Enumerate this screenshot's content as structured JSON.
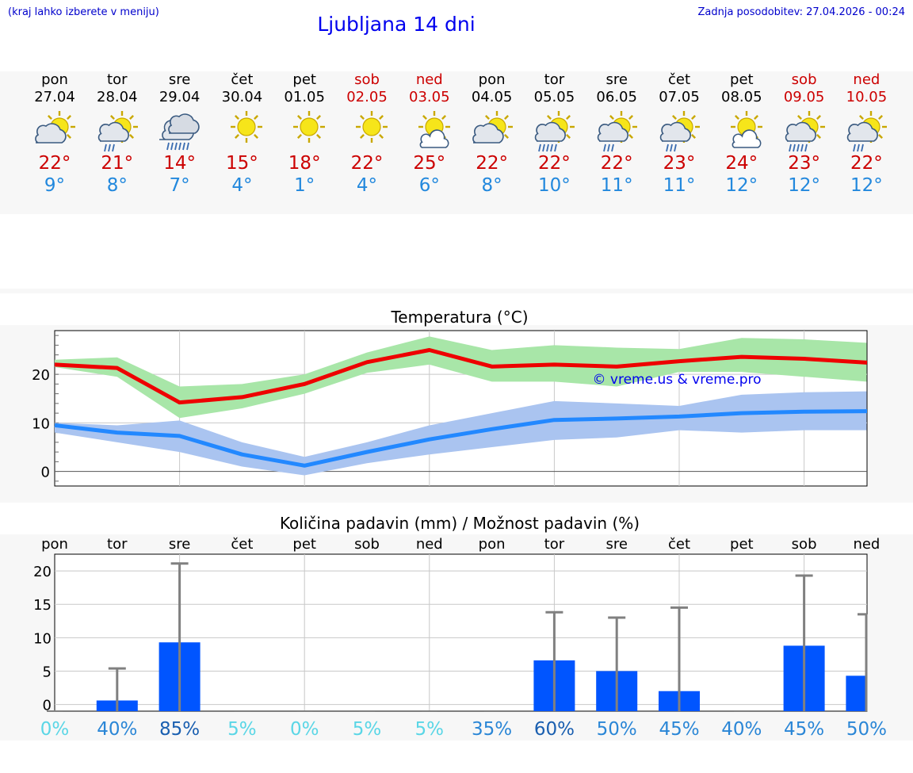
{
  "header": {
    "hint": "(kraj lahko izberete v meniju)",
    "title": "Ljubljana 14 dni",
    "updated": "Zadnja posodobitev: 27.04.2026 - 00:24"
  },
  "days": [
    {
      "name": "pon",
      "date": "27.04",
      "weekend": false,
      "icon": "partly-cloudy-icon",
      "tmax": "22°",
      "tmin": "9°"
    },
    {
      "name": "tor",
      "date": "28.04",
      "weekend": false,
      "icon": "sun-rain-icon",
      "tmax": "21°",
      "tmin": "8°"
    },
    {
      "name": "sre",
      "date": "29.04",
      "weekend": false,
      "icon": "cloud-rain-icon",
      "tmax": "14°",
      "tmin": "7°"
    },
    {
      "name": "čet",
      "date": "30.04",
      "weekend": false,
      "icon": "sun-icon",
      "tmax": "15°",
      "tmin": "4°"
    },
    {
      "name": "pet",
      "date": "01.05",
      "weekend": false,
      "icon": "sun-icon",
      "tmax": "18°",
      "tmin": "1°"
    },
    {
      "name": "sob",
      "date": "02.05",
      "weekend": true,
      "icon": "sun-icon",
      "tmax": "22°",
      "tmin": "4°"
    },
    {
      "name": "ned",
      "date": "03.05",
      "weekend": true,
      "icon": "sun-small-cloud-icon",
      "tmax": "25°",
      "tmin": "6°"
    },
    {
      "name": "pon",
      "date": "04.05",
      "weekend": false,
      "icon": "partly-cloudy-icon",
      "tmax": "22°",
      "tmin": "8°"
    },
    {
      "name": "tor",
      "date": "05.05",
      "weekend": false,
      "icon": "sun-heavy-rain-icon",
      "tmax": "22°",
      "tmin": "10°"
    },
    {
      "name": "sre",
      "date": "06.05",
      "weekend": false,
      "icon": "sun-rain-icon",
      "tmax": "22°",
      "tmin": "11°"
    },
    {
      "name": "čet",
      "date": "07.05",
      "weekend": false,
      "icon": "sun-rain-icon",
      "tmax": "23°",
      "tmin": "11°"
    },
    {
      "name": "pet",
      "date": "08.05",
      "weekend": false,
      "icon": "sun-small-cloud-icon",
      "tmax": "24°",
      "tmin": "12°"
    },
    {
      "name": "sob",
      "date": "09.05",
      "weekend": true,
      "icon": "sun-heavy-rain-icon",
      "tmax": "23°",
      "tmin": "12°"
    },
    {
      "name": "ned",
      "date": "10.05",
      "weekend": true,
      "icon": "sun-rain-icon",
      "tmax": "22°",
      "tmin": "12°"
    }
  ],
  "colors": {
    "tmax": "#cc0000",
    "tmin": "#2288dd",
    "max_line": "#ee0000",
    "max_band": "#a8e6a8",
    "min_line": "#2288ff",
    "min_band": "#aac4f0",
    "bar": "#0055ff",
    "whisker": "#808080"
  },
  "chart_data": [
    {
      "type": "line",
      "title": "Temperatura (°C)",
      "watermark": "© vreme.us & vreme.pro",
      "x": [
        0,
        1,
        2,
        3,
        4,
        5,
        6,
        7,
        8,
        9,
        10,
        11,
        12,
        13
      ],
      "ylim": [
        -3,
        29
      ],
      "yticks": [
        0,
        10,
        20
      ],
      "series": [
        {
          "name": "max",
          "values": [
            22,
            21.3,
            14.2,
            15.3,
            18,
            22.5,
            25,
            21.6,
            22,
            21.6,
            22.7,
            23.6,
            23.2,
            22.4
          ],
          "band_low": [
            21.5,
            19.5,
            11,
            13,
            16,
            20.3,
            22,
            18.5,
            18.5,
            17.5,
            20.5,
            20.5,
            19.5,
            18.5
          ],
          "band_high": [
            23,
            23.5,
            17.5,
            18,
            20,
            24.5,
            27.8,
            25,
            26,
            25.5,
            25.2,
            27.5,
            27.2,
            26.5
          ]
        },
        {
          "name": "min",
          "values": [
            9.5,
            8,
            7.3,
            3.5,
            1.2,
            4,
            6.6,
            8.7,
            10.6,
            10.9,
            11.3,
            12,
            12.3,
            12.4
          ],
          "band_low": [
            8,
            6,
            4,
            1,
            -0.8,
            1.7,
            3.5,
            5,
            6.5,
            7,
            8.5,
            8,
            8.5,
            8.5
          ],
          "band_high": [
            10,
            9.5,
            10.5,
            6,
            3,
            6,
            9.5,
            12,
            14.5,
            14,
            13.5,
            15.8,
            16.3,
            16.5
          ]
        }
      ]
    },
    {
      "type": "bar",
      "title": "Količina padavin (mm) / Možnost padavin (%)",
      "categories": [
        "pon",
        "tor",
        "sre",
        "čet",
        "pet",
        "sob",
        "ned",
        "pon",
        "tor",
        "sre",
        "čet",
        "pet",
        "sob",
        "ned"
      ],
      "values": [
        0,
        0.6,
        9.3,
        0,
        0,
        0,
        0,
        0,
        6.6,
        5,
        2,
        0,
        8.8,
        4.3
      ],
      "whisker_max": [
        0,
        5.4,
        21.1,
        0,
        0,
        0,
        0,
        0,
        13.8,
        13,
        14.5,
        0,
        19.3,
        13.5
      ],
      "probability": [
        "0%",
        "40%",
        "85%",
        "5%",
        "0%",
        "5%",
        "5%",
        "35%",
        "60%",
        "50%",
        "45%",
        "40%",
        "45%",
        "50%"
      ],
      "probability_values": [
        0,
        40,
        85,
        5,
        0,
        5,
        5,
        35,
        60,
        50,
        45,
        40,
        45,
        50
      ],
      "ylim": [
        -1,
        22.5
      ],
      "yticks": [
        0,
        5,
        10,
        15,
        20
      ]
    }
  ]
}
